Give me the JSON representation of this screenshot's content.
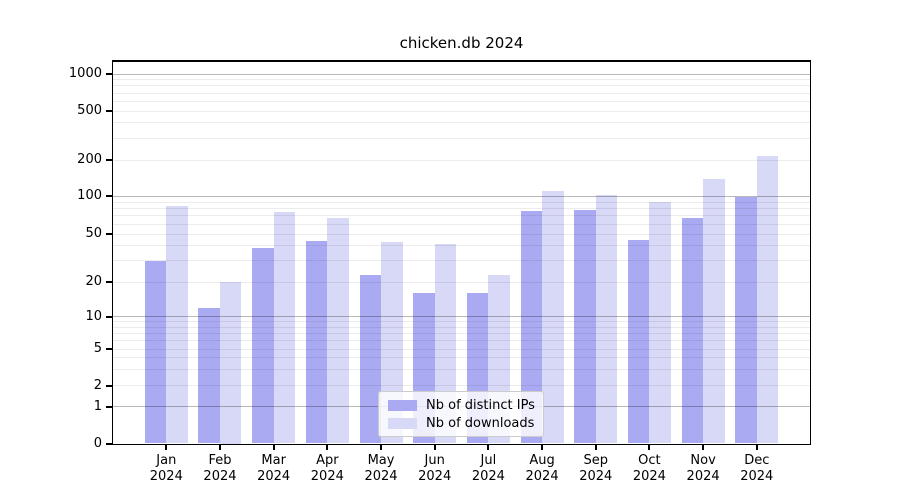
{
  "chart_data": {
    "type": "bar",
    "title": "chicken.db 2024",
    "categories": [
      {
        "line1": "Jan",
        "line2": "2024"
      },
      {
        "line1": "Feb",
        "line2": "2024"
      },
      {
        "line1": "Mar",
        "line2": "2024"
      },
      {
        "line1": "Apr",
        "line2": "2024"
      },
      {
        "line1": "May",
        "line2": "2024"
      },
      {
        "line1": "Jun",
        "line2": "2024"
      },
      {
        "line1": "Jul",
        "line2": "2024"
      },
      {
        "line1": "Aug",
        "line2": "2024"
      },
      {
        "line1": "Sep",
        "line2": "2024"
      },
      {
        "line1": "Oct",
        "line2": "2024"
      },
      {
        "line1": "Nov",
        "line2": "2024"
      },
      {
        "line1": "Dec",
        "line2": "2024"
      }
    ],
    "series": [
      {
        "name": "Nb of distinct IPs",
        "color": "#aaaaf3",
        "values": [
          30,
          12,
          38,
          44,
          23,
          16,
          16,
          76,
          78,
          45,
          67,
          98
        ]
      },
      {
        "name": "Nb of downloads",
        "color": "#d8d8f7",
        "values": [
          83,
          20,
          75,
          67,
          43,
          41,
          23,
          110,
          103,
          90,
          140,
          216
        ]
      }
    ],
    "xlabel": "",
    "ylabel": "",
    "y_axis": {
      "scale": "symlog",
      "tick_labels": [
        "0",
        "1",
        "2",
        "5",
        "10",
        "20",
        "50",
        "100",
        "200",
        "500",
        "1000"
      ],
      "tick_values": [
        0,
        1,
        2,
        5,
        10,
        20,
        50,
        100,
        200,
        500,
        1000
      ],
      "major_grid_values": [
        1,
        10,
        100,
        1000
      ],
      "ylim": [
        0,
        1200
      ]
    },
    "legend": {
      "position": "lower center"
    },
    "grid": true,
    "background": "#ffffff"
  }
}
